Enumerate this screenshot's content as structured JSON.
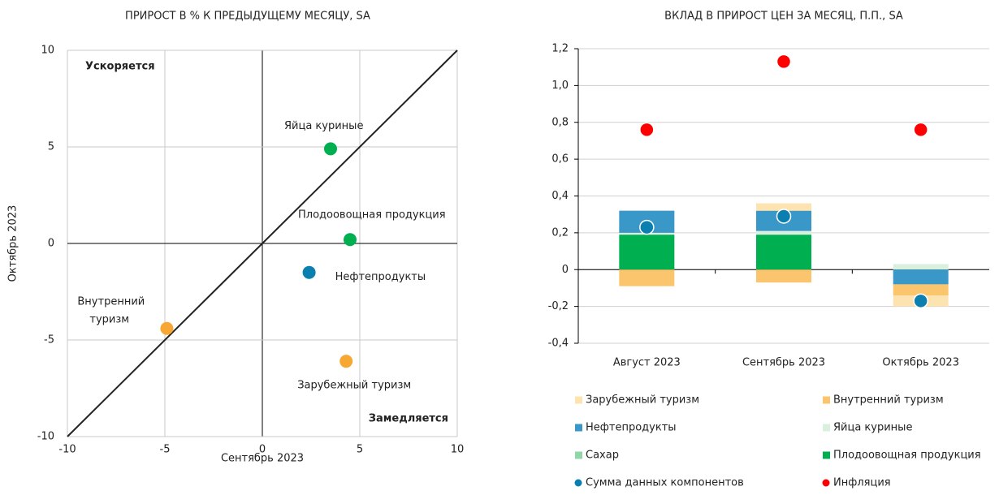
{
  "chart_data": [
    {
      "type": "scatter",
      "title": "ПРИРОСТ В % К ПРЕДЫДУЩЕМУ МЕСЯЦУ, SA",
      "xlabel": "Сентябрь 2023",
      "ylabel": "Октябрь 2023",
      "annotations": [
        "Ускоряется",
        "Замедляется"
      ],
      "xlim": [
        -10,
        10
      ],
      "ylim": [
        -10,
        10
      ],
      "xticks": [
        -10,
        -5,
        0,
        5,
        10
      ],
      "yticks": [
        -10,
        -5,
        0,
        5,
        10
      ],
      "grid": true,
      "points": [
        {
          "label": "Яйца куриные",
          "x": 3.5,
          "y": 4.9,
          "color": "#00b050"
        },
        {
          "label": "Плодоовощная продукция",
          "x": 4.5,
          "y": 0.2,
          "color": "#00b050"
        },
        {
          "label": "Нефтепродукты",
          "x": 2.4,
          "y": -1.5,
          "color": "#0b7fb0"
        },
        {
          "label": "Внутренний туризм",
          "x": -4.9,
          "y": -4.4,
          "color": "#f7a834"
        },
        {
          "label": "Зарубежный туризм",
          "x": 4.3,
          "y": -6.1,
          "color": "#f7a834"
        }
      ]
    },
    {
      "type": "stacked_bar",
      "title": "ВКЛАД В ПРИРОСТ ЦЕН ЗА МЕСЯЦ, П.П., SA",
      "categories": [
        "Август 2023",
        "Сентябрь 2023",
        "Октябрь 2023"
      ],
      "ylim": [
        -0.4,
        1.2
      ],
      "yticks": [
        {
          "value": -0.4,
          "label": "-0,4"
        },
        {
          "value": -0.2,
          "label": "-0,2"
        },
        0,
        {
          "value": 0.2,
          "label": "0,2"
        },
        {
          "value": 0.4,
          "label": "0,4"
        },
        {
          "value": 0.6,
          "label": "0,6"
        },
        {
          "value": 0.8,
          "label": "0,8"
        },
        {
          "value": 1.0,
          "label": "1,0"
        },
        {
          "value": 1.2,
          "label": "1,2"
        }
      ],
      "grid": true,
      "series": [
        {
          "name": "Зарубежный туризм",
          "color": "#fde3b0",
          "values": [
            0,
            0.04,
            -0.06
          ]
        },
        {
          "name": "Внутренний туризм",
          "color": "#fbc56e",
          "values": [
            -0.09,
            -0.07,
            -0.06
          ]
        },
        {
          "name": "Нефтепродукты",
          "color": "#3a98c9",
          "values": [
            0.12,
            0.11,
            -0.08
          ]
        },
        {
          "name": "Яйца куриные",
          "color": "#d8f0dd",
          "values": [
            0.01,
            0.02,
            0.03
          ]
        },
        {
          "name": "Сахар",
          "color": "#8fd6a8",
          "values": [
            0,
            0,
            0
          ]
        },
        {
          "name": "Плодоовощная продукция",
          "color": "#00b050",
          "values": [
            0.19,
            0.19,
            0
          ]
        },
        {
          "name": "Сумма данных компонентов",
          "color": "#0b7fb0",
          "kind": "dot",
          "values": [
            0.23,
            0.29,
            -0.17
          ]
        },
        {
          "name": "Инфляция",
          "color": "#ff0000",
          "kind": "dot",
          "values": [
            0.76,
            1.13,
            0.76
          ]
        }
      ]
    }
  ]
}
